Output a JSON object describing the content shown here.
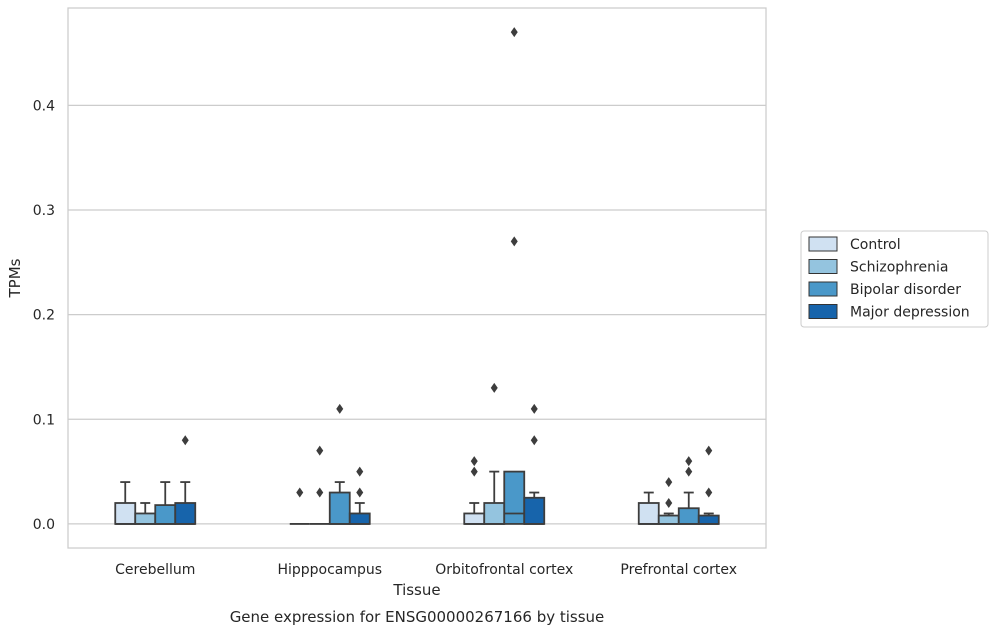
{
  "chart_data": {
    "type": "box",
    "caption": "Gene expression for ENSG00000267166 by tissue",
    "xlabel": "Tissue",
    "ylabel": "TPMs",
    "ylim": [
      -0.023,
      0.493
    ],
    "yticks": [
      0.0,
      0.1,
      0.2,
      0.3,
      0.4
    ],
    "ytick_labels": [
      "0.0",
      "0.1",
      "0.2",
      "0.3",
      "0.4"
    ],
    "grid": "horizontal",
    "legend_position": "right",
    "categories": [
      "Cerebellum",
      "Hipppocampus",
      "Orbitofrontal cortex",
      "Prefrontal cortex"
    ],
    "series": [
      {
        "name": "Control",
        "color": "#d0e1f2",
        "boxes": [
          {
            "q1": 0.0,
            "median": 0.0,
            "q3": 0.02,
            "whislo": 0.0,
            "whishi": 0.04,
            "fliers": []
          },
          {
            "q1": 0.0,
            "median": 0.0,
            "q3": 0.0,
            "whislo": 0.0,
            "whishi": 0.0,
            "fliers": [
              0.03
            ]
          },
          {
            "q1": 0.0,
            "median": 0.0,
            "q3": 0.01,
            "whislo": 0.0,
            "whishi": 0.02,
            "fliers": [
              0.05,
              0.06
            ]
          },
          {
            "q1": 0.0,
            "median": 0.0,
            "q3": 0.02,
            "whislo": 0.0,
            "whishi": 0.03,
            "fliers": []
          }
        ]
      },
      {
        "name": "Schizophrenia",
        "color": "#94c4df",
        "boxes": [
          {
            "q1": 0.0,
            "median": 0.0,
            "q3": 0.01,
            "whislo": 0.0,
            "whishi": 0.02,
            "fliers": []
          },
          {
            "q1": 0.0,
            "median": 0.0,
            "q3": 0.0,
            "whislo": 0.0,
            "whishi": 0.0,
            "fliers": [
              0.03,
              0.07
            ]
          },
          {
            "q1": 0.0,
            "median": 0.0,
            "q3": 0.02,
            "whislo": 0.0,
            "whishi": 0.05,
            "fliers": [
              0.13
            ]
          },
          {
            "q1": 0.0,
            "median": 0.0,
            "q3": 0.008,
            "whislo": 0.0,
            "whishi": 0.01,
            "fliers": [
              0.02,
              0.04
            ]
          }
        ]
      },
      {
        "name": "Bipolar disorder",
        "color": "#4a98c9",
        "boxes": [
          {
            "q1": 0.0,
            "median": 0.0,
            "q3": 0.018,
            "whislo": 0.0,
            "whishi": 0.04,
            "fliers": []
          },
          {
            "q1": 0.0,
            "median": 0.0,
            "q3": 0.03,
            "whislo": 0.0,
            "whishi": 0.04,
            "fliers": [
              0.11
            ]
          },
          {
            "q1": 0.0,
            "median": 0.01,
            "q3": 0.05,
            "whislo": 0.0,
            "whishi": 0.05,
            "fliers": [
              0.27,
              0.47
            ]
          },
          {
            "q1": 0.0,
            "median": 0.0,
            "q3": 0.015,
            "whislo": 0.0,
            "whishi": 0.03,
            "fliers": [
              0.05,
              0.06
            ]
          }
        ]
      },
      {
        "name": "Major depression",
        "color": "#1764ab",
        "boxes": [
          {
            "q1": 0.0,
            "median": 0.0,
            "q3": 0.02,
            "whislo": 0.0,
            "whishi": 0.04,
            "fliers": [
              0.08
            ]
          },
          {
            "q1": 0.0,
            "median": 0.0,
            "q3": 0.01,
            "whislo": 0.0,
            "whishi": 0.02,
            "fliers": [
              0.03,
              0.05
            ]
          },
          {
            "q1": 0.0,
            "median": 0.0,
            "q3": 0.025,
            "whislo": 0.0,
            "whishi": 0.03,
            "fliers": [
              0.08,
              0.11
            ]
          },
          {
            "q1": 0.0,
            "median": 0.0,
            "q3": 0.008,
            "whislo": 0.0,
            "whishi": 0.01,
            "fliers": [
              0.03,
              0.07
            ]
          }
        ]
      }
    ]
  }
}
